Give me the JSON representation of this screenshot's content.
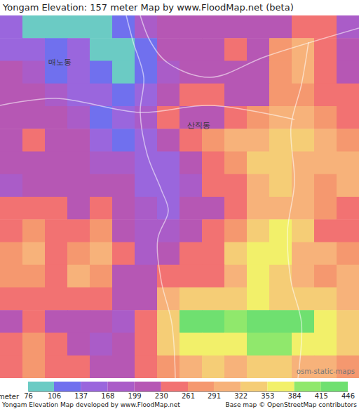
{
  "chart_data": {
    "type": "heatmap",
    "title": "Yongam Elevation: 157 meter Map by www.FloodMap.net (beta)",
    "cells": [
      [
        150,
        100,
        100,
        100,
        95,
        110,
        190,
        210,
        215,
        220,
        210,
        200,
        220,
        230,
        240,
        180
      ],
      [
        150,
        160,
        130,
        140,
        100,
        100,
        120,
        200,
        210,
        220,
        230,
        215,
        280,
        300,
        250,
        200
      ],
      [
        200,
        170,
        130,
        140,
        120,
        100,
        130,
        180,
        200,
        215,
        210,
        220,
        290,
        300,
        260,
        220
      ],
      [
        215,
        210,
        180,
        150,
        140,
        130,
        160,
        200,
        230,
        250,
        220,
        210,
        280,
        270,
        240,
        230
      ],
      [
        220,
        215,
        200,
        170,
        130,
        140,
        180,
        230,
        200,
        220,
        260,
        280,
        300,
        310,
        270,
        250
      ],
      [
        225,
        230,
        215,
        200,
        140,
        125,
        150,
        200,
        240,
        280,
        300,
        320,
        340,
        330,
        300,
        290
      ],
      [
        210,
        220,
        220,
        215,
        190,
        170,
        140,
        160,
        220,
        260,
        290,
        330,
        345,
        320,
        300,
        320
      ],
      [
        190,
        200,
        215,
        210,
        200,
        200,
        150,
        140,
        180,
        230,
        260,
        310,
        330,
        300,
        280,
        300
      ],
      [
        230,
        260,
        240,
        220,
        230,
        200,
        170,
        160,
        200,
        210,
        250,
        300,
        320,
        310,
        290,
        260
      ],
      [
        260,
        280,
        250,
        230,
        270,
        200,
        180,
        180,
        210,
        230,
        290,
        350,
        370,
        340,
        260,
        250
      ],
      [
        290,
        300,
        260,
        280,
        300,
        230,
        190,
        220,
        240,
        260,
        330,
        370,
        360,
        320,
        300,
        280
      ],
      [
        280,
        290,
        260,
        300,
        290,
        220,
        200,
        230,
        230,
        250,
        320,
        360,
        340,
        300,
        290,
        300
      ],
      [
        230,
        260,
        240,
        250,
        230,
        200,
        220,
        300,
        340,
        340,
        350,
        360,
        340,
        330,
        330,
        320
      ],
      [
        220,
        230,
        220,
        210,
        200,
        190,
        260,
        340,
        420,
        420,
        400,
        420,
        420,
        420,
        380,
        350
      ],
      [
        250,
        270,
        240,
        220,
        190,
        200,
        250,
        330,
        360,
        380,
        370,
        390,
        410,
        380,
        360,
        340
      ],
      [
        240,
        270,
        260,
        230,
        200,
        200,
        230,
        290,
        310,
        330,
        320,
        330,
        340,
        320,
        300,
        290
      ]
    ],
    "colorbar": {
      "label": "meter",
      "range": [
        76,
        446
      ],
      "ticks": [
        76,
        106,
        137,
        168,
        199,
        230,
        261,
        291,
        322,
        353,
        384,
        415,
        446
      ],
      "colors": [
        "#6bcbc4",
        "#7070ee",
        "#9a66dd",
        "#aa5cc8",
        "#b657b4",
        "#f27272",
        "#f5986f",
        "#f7b27a",
        "#f5cd76",
        "#f2f06a",
        "#90e86c",
        "#6fe070"
      ]
    },
    "annotations": [
      "매노동",
      "산직동",
      "osm-static-maps"
    ],
    "footer": [
      "Yongam Elevation Map developed by www.FloodMap.net",
      "Base map © OpenStreetMap contributors"
    ]
  }
}
